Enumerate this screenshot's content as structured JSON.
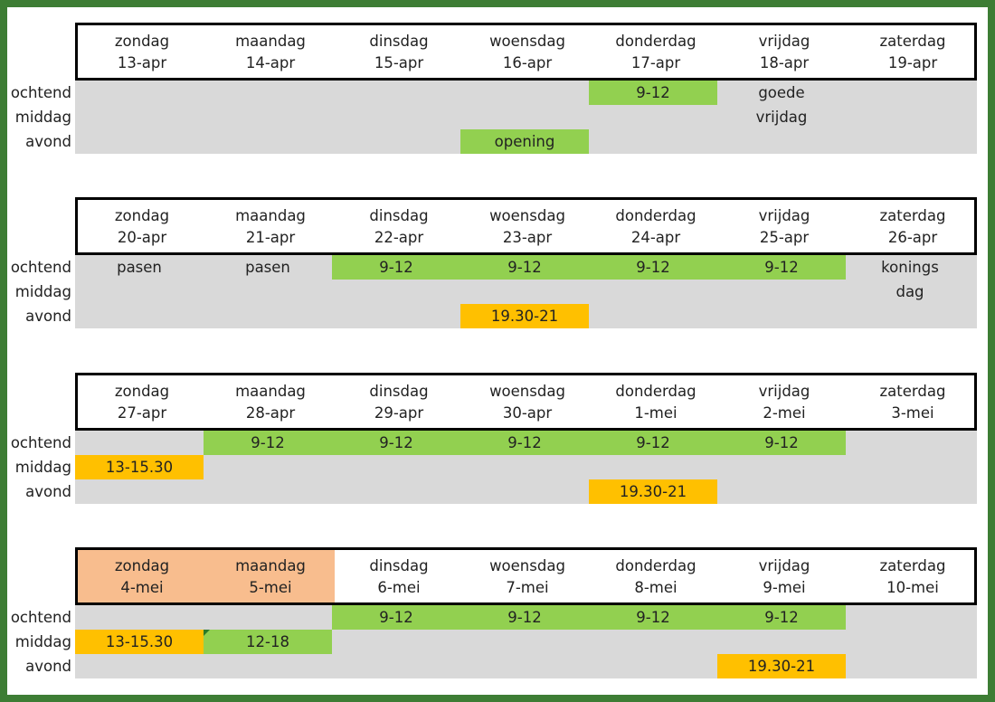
{
  "row_labels": [
    "ochtend",
    "middag",
    "avond"
  ],
  "weeks": [
    {
      "days": [
        {
          "name": "zondag",
          "date": "13-apr"
        },
        {
          "name": "maandag",
          "date": "14-apr"
        },
        {
          "name": "dinsdag",
          "date": "15-apr"
        },
        {
          "name": "woensdag",
          "date": "16-apr"
        },
        {
          "name": "donderdag",
          "date": "17-apr"
        },
        {
          "name": "vrijdag",
          "date": "18-apr"
        },
        {
          "name": "zaterdag",
          "date": "19-apr"
        }
      ],
      "slots": [
        {
          "day": 4,
          "row": 0,
          "text": "9-12",
          "kind": "green"
        },
        {
          "day": 5,
          "row": 0,
          "text": "goede",
          "kind": "note"
        },
        {
          "day": 5,
          "row": 1,
          "text": "vrijdag",
          "kind": "note"
        },
        {
          "day": 3,
          "row": 2,
          "text": "opening",
          "kind": "green"
        }
      ]
    },
    {
      "days": [
        {
          "name": "zondag",
          "date": "20-apr"
        },
        {
          "name": "maandag",
          "date": "21-apr"
        },
        {
          "name": "dinsdag",
          "date": "22-apr"
        },
        {
          "name": "woensdag",
          "date": "23-apr"
        },
        {
          "name": "donderdag",
          "date": "24-apr"
        },
        {
          "name": "vrijdag",
          "date": "25-apr"
        },
        {
          "name": "zaterdag",
          "date": "26-apr"
        }
      ],
      "slots": [
        {
          "day": 0,
          "row": 0,
          "text": "pasen",
          "kind": "note"
        },
        {
          "day": 1,
          "row": 0,
          "text": "pasen",
          "kind": "note"
        },
        {
          "day": 2,
          "row": 0,
          "text": "9-12",
          "kind": "green"
        },
        {
          "day": 3,
          "row": 0,
          "text": "9-12",
          "kind": "green"
        },
        {
          "day": 4,
          "row": 0,
          "text": "9-12",
          "kind": "green"
        },
        {
          "day": 5,
          "row": 0,
          "text": "9-12",
          "kind": "green"
        },
        {
          "day": 6,
          "row": 0,
          "text": "konings",
          "kind": "note"
        },
        {
          "day": 6,
          "row": 1,
          "text": "dag",
          "kind": "note"
        },
        {
          "day": 3,
          "row": 2,
          "text": "19.30-21",
          "kind": "orange"
        }
      ]
    },
    {
      "days": [
        {
          "name": "zondag",
          "date": "27-apr"
        },
        {
          "name": "maandag",
          "date": "28-apr"
        },
        {
          "name": "dinsdag",
          "date": "29-apr"
        },
        {
          "name": "woensdag",
          "date": "30-apr"
        },
        {
          "name": "donderdag",
          "date": "1-mei"
        },
        {
          "name": "vrijdag",
          "date": "2-mei"
        },
        {
          "name": "zaterdag",
          "date": "3-mei"
        }
      ],
      "slots": [
        {
          "day": 1,
          "row": 0,
          "text": "9-12",
          "kind": "green"
        },
        {
          "day": 2,
          "row": 0,
          "text": "9-12",
          "kind": "green"
        },
        {
          "day": 3,
          "row": 0,
          "text": "9-12",
          "kind": "green"
        },
        {
          "day": 4,
          "row": 0,
          "text": "9-12",
          "kind": "green"
        },
        {
          "day": 5,
          "row": 0,
          "text": "9-12",
          "kind": "green"
        },
        {
          "day": 0,
          "row": 1,
          "text": "13-15.30",
          "kind": "orange"
        },
        {
          "day": 4,
          "row": 2,
          "text": "19.30-21",
          "kind": "orange"
        }
      ]
    },
    {
      "days": [
        {
          "name": "zondag",
          "date": "4-mei",
          "highlight": true
        },
        {
          "name": "maandag",
          "date": "5-mei",
          "highlight": true
        },
        {
          "name": "dinsdag",
          "date": "6-mei"
        },
        {
          "name": "woensdag",
          "date": "7-mei"
        },
        {
          "name": "donderdag",
          "date": "8-mei"
        },
        {
          "name": "vrijdag",
          "date": "9-mei"
        },
        {
          "name": "zaterdag",
          "date": "10-mei"
        }
      ],
      "slots": [
        {
          "day": 2,
          "row": 0,
          "text": "9-12",
          "kind": "green"
        },
        {
          "day": 3,
          "row": 0,
          "text": "9-12",
          "kind": "green"
        },
        {
          "day": 4,
          "row": 0,
          "text": "9-12",
          "kind": "green"
        },
        {
          "day": 5,
          "row": 0,
          "text": "9-12",
          "kind": "green"
        },
        {
          "day": 0,
          "row": 1,
          "text": "13-15.30",
          "kind": "orange"
        },
        {
          "day": 1,
          "row": 1,
          "text": "12-18",
          "kind": "green",
          "comment_marker": true
        },
        {
          "day": 5,
          "row": 2,
          "text": "19.30-21",
          "kind": "orange"
        }
      ]
    }
  ],
  "colors": {
    "frame": "#3d7d34",
    "green": "#92d050",
    "orange": "#ffc000",
    "peach": "#f8bd8e",
    "gray": "#d9d9d9"
  }
}
